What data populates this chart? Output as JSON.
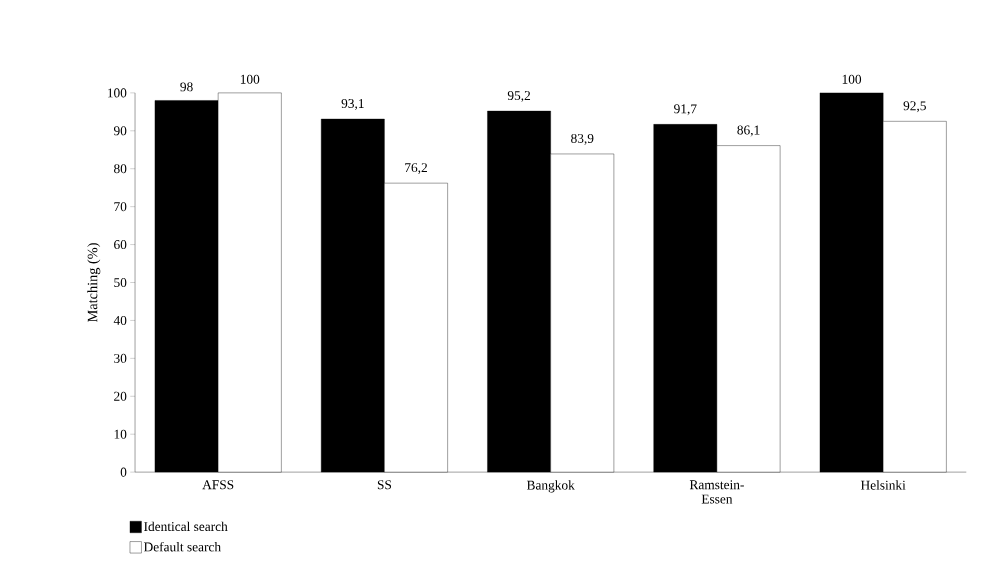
{
  "chart_data": {
    "type": "bar",
    "ylabel": "Matching (%)",
    "categories": [
      "AFSS",
      "SS",
      "Bangkok",
      "Ramstein-Essen",
      "Helsinki"
    ],
    "series": [
      {
        "name": "Identical search",
        "color": "#000000",
        "values": [
          98,
          93.1,
          95.2,
          91.7,
          100
        ],
        "value_labels": [
          "98",
          "93,1",
          "95,2",
          "91,7",
          "100"
        ]
      },
      {
        "name": "Default search",
        "color": "#ffffff",
        "values": [
          100,
          76.2,
          83.9,
          86.1,
          92.5
        ],
        "value_labels": [
          "100",
          "76,2",
          "83,9",
          "86,1",
          "92,5"
        ]
      }
    ],
    "ylim": [
      0,
      100
    ],
    "yticks": [
      0,
      10,
      20,
      30,
      40,
      50,
      60,
      70,
      80,
      90,
      100
    ],
    "grid": false,
    "legend": "bottom left"
  }
}
